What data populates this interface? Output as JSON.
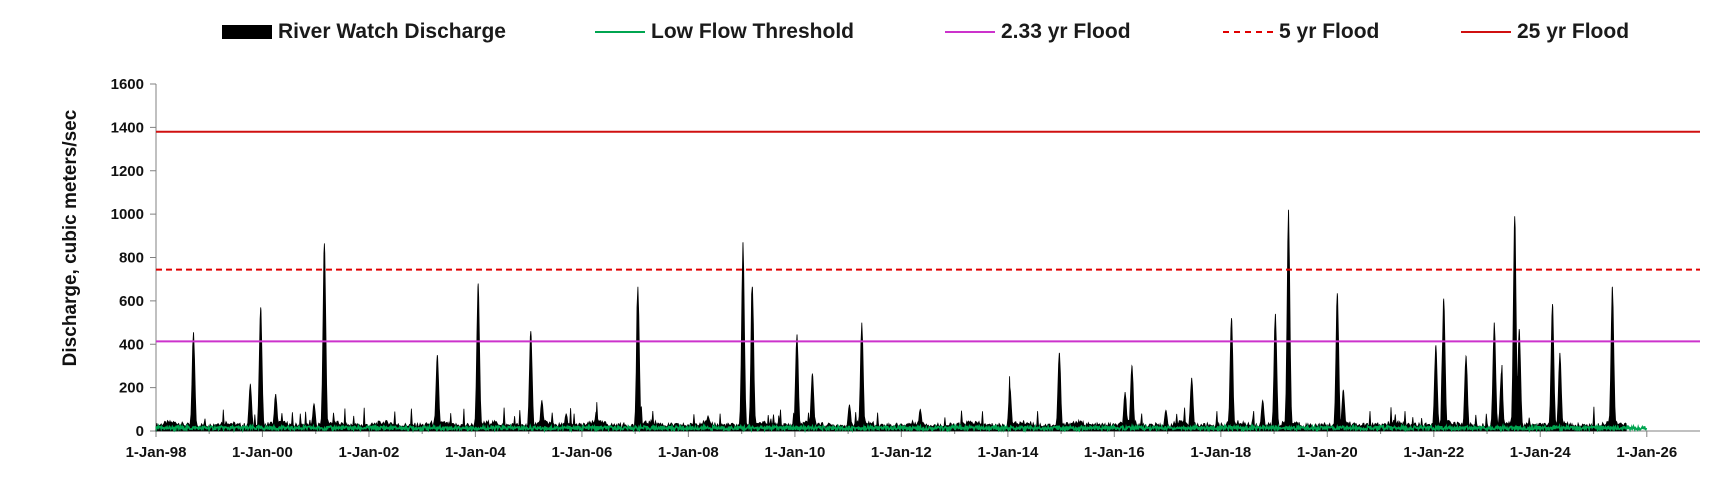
{
  "chart_data": {
    "type": "area",
    "ylabel": "Discharge, cubic meters/sec",
    "xlabel": "",
    "ylim": [
      0,
      1600
    ],
    "yticks": [
      "0",
      "200",
      "400",
      "600",
      "800",
      "1000",
      "1200",
      "1400",
      "1600"
    ],
    "xlim": [
      "1998-01-01",
      "2027-01-01"
    ],
    "xtick_labels": [
      "1-Jan-98",
      "1-Jan-00",
      "1-Jan-02",
      "1-Jan-04",
      "1-Jan-06",
      "1-Jan-08",
      "1-Jan-10",
      "1-Jan-12",
      "1-Jan-14",
      "1-Jan-16",
      "1-Jan-18",
      "1-Jan-20",
      "1-Jan-22",
      "1-Jan-24",
      "1-Jan-26"
    ],
    "legend_position": "top",
    "grid": false,
    "series": [
      {
        "name": "River Watch Discharge",
        "kind": "area",
        "color": "#000000",
        "baseline": 25,
        "peaks": [
          [
            "1998-09-15",
            455
          ],
          [
            "1999-10-10",
            215
          ],
          [
            "1999-12-20",
            570
          ],
          [
            "2000-04-01",
            170
          ],
          [
            "2000-12-20",
            125
          ],
          [
            "2001-03-01",
            865
          ],
          [
            "2003-04-15",
            350
          ],
          [
            "2004-01-20",
            680
          ],
          [
            "2005-01-15",
            460
          ],
          [
            "2005-04-01",
            140
          ],
          [
            "2005-09-15",
            80
          ],
          [
            "2006-04-10",
            90
          ],
          [
            "2007-01-20",
            665
          ],
          [
            "2008-05-15",
            70
          ],
          [
            "2009-01-10",
            870
          ],
          [
            "2009-03-15",
            665
          ],
          [
            "2010-01-15",
            445
          ],
          [
            "2010-05-01",
            265
          ],
          [
            "2011-01-10",
            120
          ],
          [
            "2011-04-05",
            500
          ],
          [
            "2012-05-10",
            100
          ],
          [
            "2014-01-15",
            200
          ],
          [
            "2014-12-20",
            360
          ],
          [
            "2016-03-15",
            180
          ],
          [
            "2016-05-01",
            300
          ],
          [
            "2016-12-20",
            95
          ],
          [
            "2017-06-15",
            245
          ],
          [
            "2018-03-15",
            520
          ],
          [
            "2018-10-15",
            140
          ],
          [
            "2019-01-10",
            540
          ],
          [
            "2019-04-10",
            1020
          ],
          [
            "2020-03-10",
            635
          ],
          [
            "2020-04-20",
            190
          ],
          [
            "2022-01-15",
            395
          ],
          [
            "2022-03-10",
            610
          ],
          [
            "2022-08-10",
            345
          ],
          [
            "2023-02-20",
            500
          ],
          [
            "2023-04-10",
            270
          ],
          [
            "2023-07-10",
            990
          ],
          [
            "2023-08-10",
            470
          ],
          [
            "2024-03-25",
            585
          ],
          [
            "2024-05-15",
            360
          ],
          [
            "2025-05-10",
            665
          ]
        ]
      },
      {
        "name": "Low Flow Threshold",
        "kind": "line",
        "color": "#00a550",
        "value": 12
      },
      {
        "name": "2.33 yr Flood",
        "kind": "hline",
        "color": "#cc33cc",
        "value": 413,
        "dash": false
      },
      {
        "name": "5 yr Flood",
        "kind": "hline",
        "color": "#e00000",
        "value": 744,
        "dash": true
      },
      {
        "name": "25 yr Flood",
        "kind": "hline",
        "color": "#d01010",
        "value": 1380,
        "dash": false
      }
    ]
  }
}
